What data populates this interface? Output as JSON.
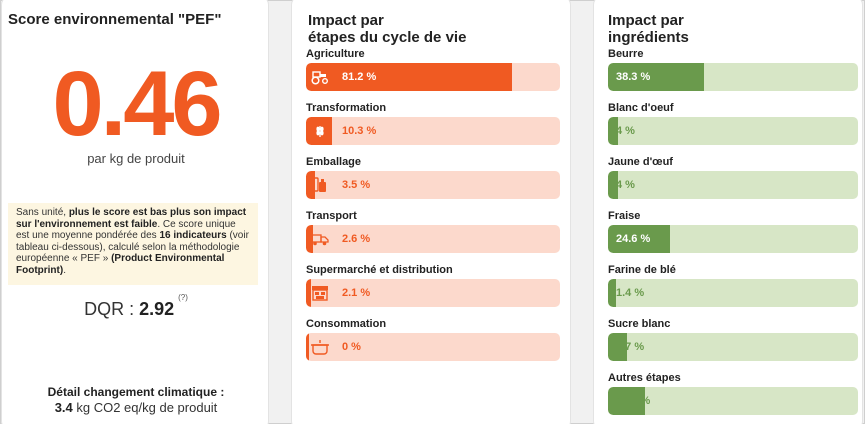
{
  "score_card": {
    "title": "Score environnemental \"PEF\"",
    "score": "0.46",
    "unit": "par kg de produit",
    "info": {
      "p1": "Sans unité, ",
      "b1": "plus le score est bas plus son impact sur l'environnement est faible",
      "p2": ". Ce score unique est une moyenne pondérée des ",
      "b2": "16 indicateurs",
      "p3": " (voir tableau ci-dessous), calculé selon la méthodologie européenne « PEF » ",
      "b3": "(Product Environmental Footprint)",
      "p4": "."
    },
    "dqr_label": "DQR : ",
    "dqr_value": "2.92",
    "dqr_help": "(?)",
    "climate_title": "Détail changement climatique :",
    "climate_value": "3.4",
    "climate_unit": " kg CO2 eq/kg de produit"
  },
  "stages_card": {
    "title_line1": "Impact par",
    "title_line2": "étapes du cycle de vie",
    "rows": [
      {
        "label": "Agriculture",
        "pct": "81.2 %",
        "fraction": 0.812,
        "icon": "tractor-icon"
      },
      {
        "label": "Transformation",
        "pct": "10.3 %",
        "fraction": 0.103,
        "icon": "wheat-icon"
      },
      {
        "label": "Emballage",
        "pct": "3.5 %",
        "fraction": 0.035,
        "icon": "bottle-icon"
      },
      {
        "label": "Transport",
        "pct": "2.6 %",
        "fraction": 0.026,
        "icon": "truck-icon"
      },
      {
        "label": "Supermarché et distribution",
        "pct": "2.1 %",
        "fraction": 0.021,
        "icon": "store-icon"
      },
      {
        "label": "Consommation",
        "pct": "0 %",
        "fraction": 0.0,
        "icon": "pot-icon"
      }
    ]
  },
  "ingredients_card": {
    "title_line1": "Impact par",
    "title_line2": "ingrédients",
    "rows": [
      {
        "label": "Beurre",
        "pct": "38.3 %",
        "fraction": 0.383
      },
      {
        "label": "Blanc d'oeuf",
        "pct": "4 %",
        "fraction": 0.04
      },
      {
        "label": "Jaune d'œuf",
        "pct": "4 %",
        "fraction": 0.04
      },
      {
        "label": "Fraise",
        "pct": "24.6 %",
        "fraction": 0.246
      },
      {
        "label": "Farine de blé",
        "pct": "1.4 %",
        "fraction": 0.014
      },
      {
        "label": "Sucre blanc",
        "pct": "7.7 %",
        "fraction": 0.077
      },
      {
        "label": "Autres étapes",
        "pct": "14.7 %",
        "fraction": 0.147
      }
    ]
  },
  "colors": {
    "accent": "#f05a22",
    "accent_light": "#fcd9cc",
    "green": "#6a9a4c",
    "green_light": "#d7e6c6",
    "note_bg": "#fdf6e1"
  }
}
